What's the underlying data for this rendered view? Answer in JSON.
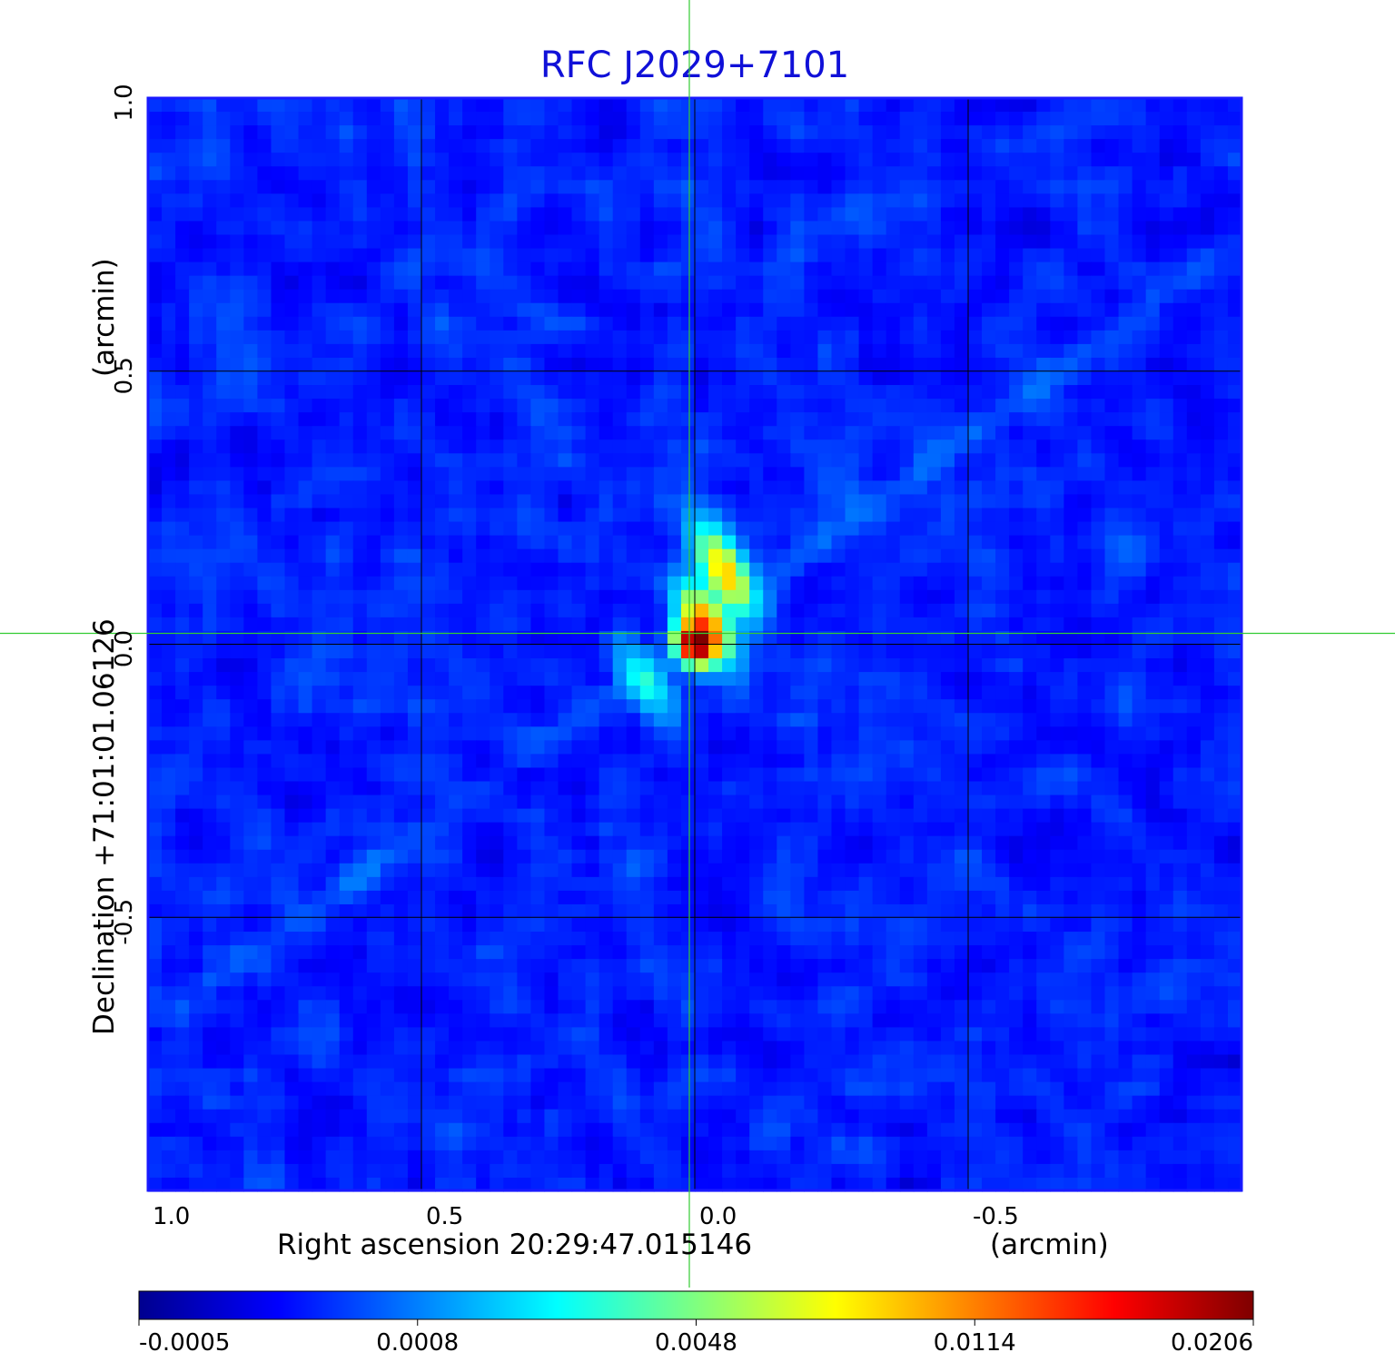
{
  "chart_data": {
    "type": "heatmap",
    "title": "RFC J2029+7101",
    "xlabel": "Right ascension  20:29:47.015146",
    "xunit": "(arcmin)",
    "ylabel": "Declination  +71:01:01.06126",
    "yunit": "(arcmin)",
    "xlim": [
      1.0,
      -1.0
    ],
    "ylim": [
      -1.0,
      1.0
    ],
    "x_ticks": [
      "1.0",
      "0.5",
      "0.0",
      "-0.5"
    ],
    "y_ticks": [
      "-0.5",
      "0.0",
      "0.5",
      "1.0"
    ],
    "x_tick_values": [
      1.0,
      0.5,
      0.0,
      -0.5
    ],
    "y_tick_values": [
      -0.5,
      0.0,
      0.5,
      1.0
    ],
    "grid": true,
    "crosshair": [
      0.0,
      0.0
    ],
    "colormap": "jet",
    "colorbar": {
      "labels": [
        "-0.0005",
        "0.0008",
        "0.0048",
        "0.0114",
        "0.0206"
      ],
      "values": [
        -0.0005,
        0.0008,
        0.0048,
        0.0114,
        0.0206
      ]
    },
    "background_level": 0.0003,
    "peak": {
      "x": 0.0,
      "y": 0.0,
      "value": 0.0206
    },
    "features": [
      {
        "x": -0.06,
        "y": 0.12,
        "value": 0.0075
      },
      {
        "x": -0.02,
        "y": 0.04,
        "value": 0.011
      },
      {
        "x": 0.09,
        "y": -0.07,
        "value": 0.003
      },
      {
        "x": -0.04,
        "y": 0.17,
        "value": 0.0035
      }
    ],
    "colors": {
      "title": "#1010d8",
      "frame": "#1a1aff",
      "grid": "#000000",
      "crosshair": "#33cc33"
    }
  }
}
